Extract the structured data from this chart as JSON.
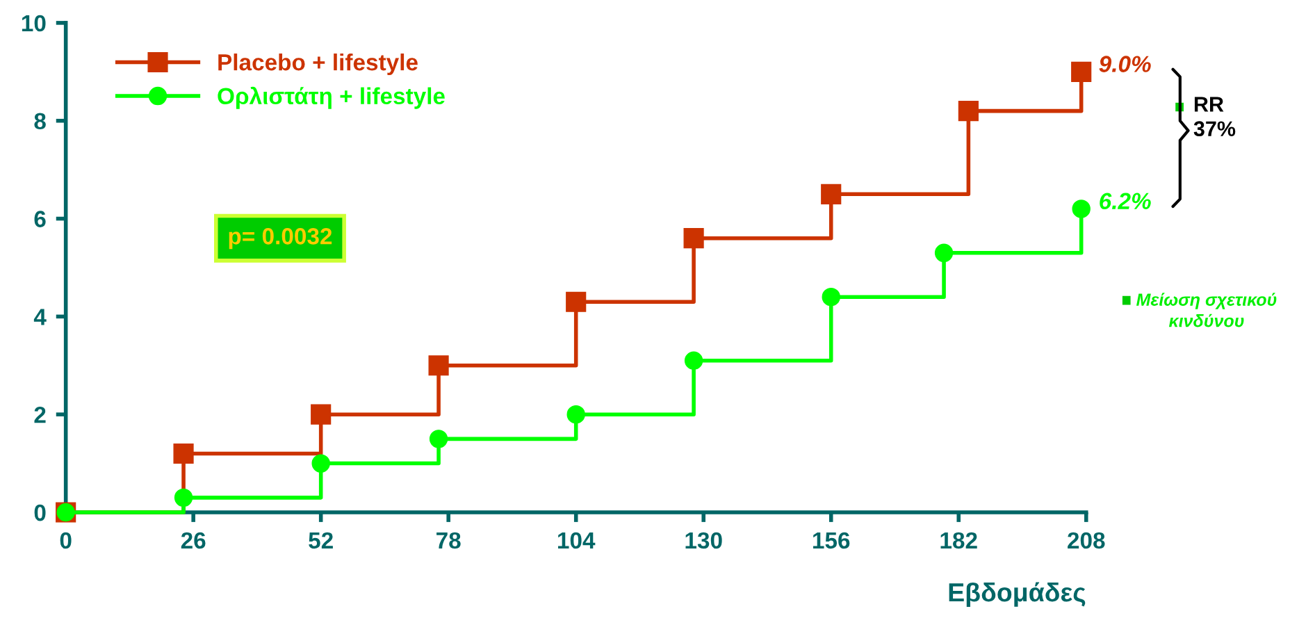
{
  "chart_data": {
    "type": "step",
    "xlabel": "Εβδομάδες",
    "xlim": [
      0,
      208
    ],
    "xticks": [
      0,
      26,
      52,
      78,
      104,
      130,
      156,
      182,
      208
    ],
    "ylim": [
      0,
      10
    ],
    "yticks": [
      0,
      2,
      4,
      6,
      8,
      10
    ],
    "grid": false,
    "legend": "top left",
    "series": [
      {
        "name": "Placebo + lifestyle",
        "color": "#cc3300",
        "marker": "square",
        "x": [
          0,
          24,
          52,
          76,
          104,
          128,
          156,
          184,
          207
        ],
        "values": [
          0,
          1.2,
          2.0,
          3.0,
          4.3,
          5.6,
          6.5,
          8.2,
          9.0
        ],
        "value_labels": [
          null,
          null,
          null,
          null,
          null,
          null,
          null,
          null,
          "9.0%"
        ]
      },
      {
        "name": "Ορλιστάτη + lifestyle",
        "color": "#00ff00",
        "marker": "circle",
        "x": [
          0,
          24,
          52,
          76,
          104,
          128,
          156,
          179,
          207
        ],
        "values": [
          0,
          0.3,
          1.0,
          1.5,
          2.0,
          3.1,
          4.4,
          5.3,
          6.2
        ],
        "value_labels": [
          null,
          null,
          null,
          null,
          null,
          null,
          null,
          null,
          "6.2%"
        ]
      }
    ],
    "annotations": [
      "p= 0.0032",
      "RR\n37%",
      "Μείωση σχετικού\nκινδύνου"
    ]
  }
}
